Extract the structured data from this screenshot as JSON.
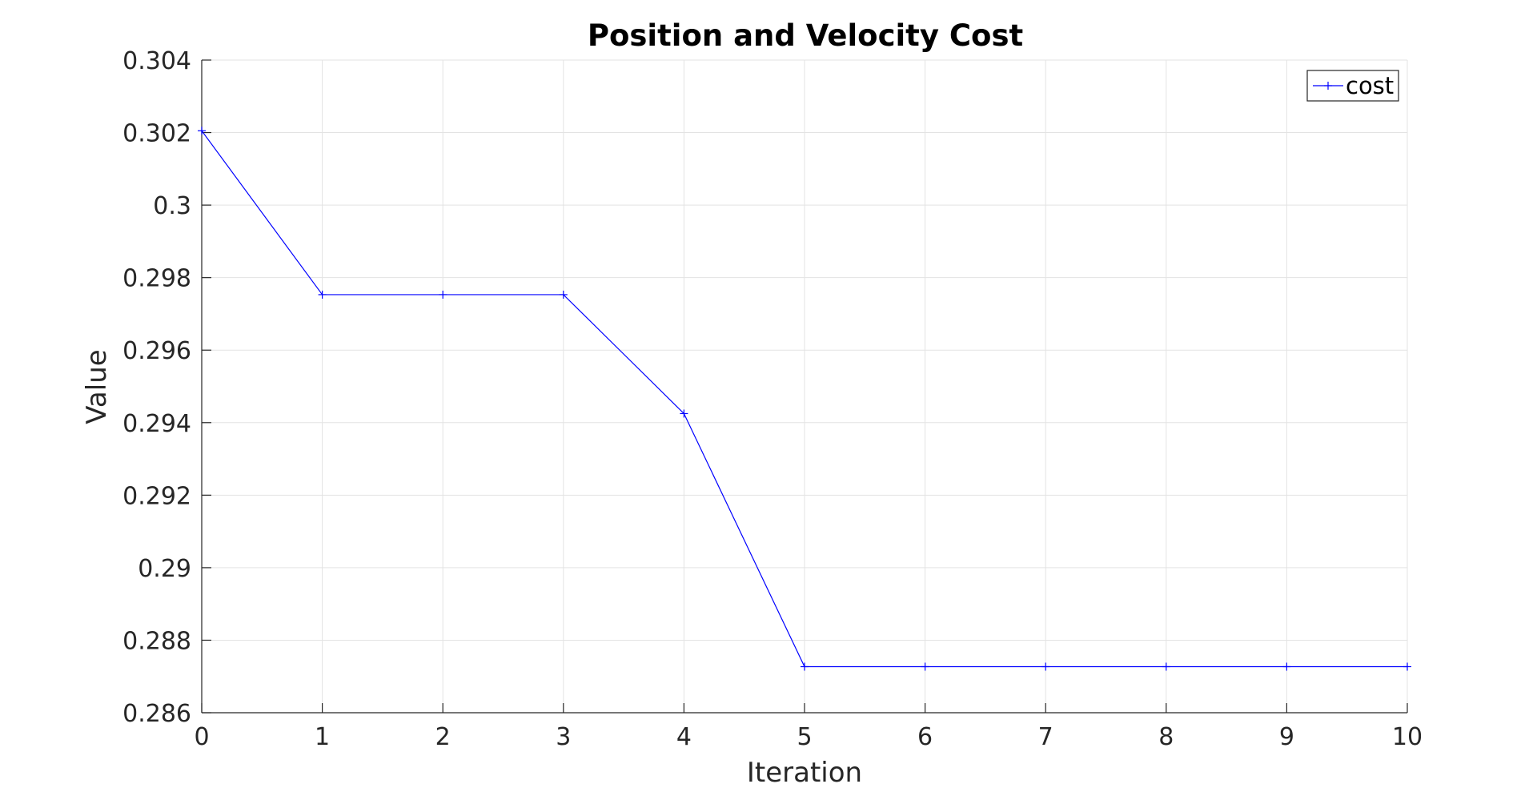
{
  "chart_data": {
    "type": "line",
    "title": "Position and Velocity Cost",
    "xlabel": "Iteration",
    "ylabel": "Value",
    "xlim": [
      0,
      10
    ],
    "ylim": [
      0.286,
      0.304
    ],
    "xticks": [
      0,
      1,
      2,
      3,
      4,
      5,
      6,
      7,
      8,
      9,
      10
    ],
    "xtick_labels": [
      "0",
      "1",
      "2",
      "3",
      "4",
      "5",
      "6",
      "7",
      "8",
      "9",
      "10"
    ],
    "yticks": [
      0.286,
      0.288,
      0.29,
      0.292,
      0.294,
      0.296,
      0.298,
      0.3,
      0.302,
      0.304
    ],
    "ytick_labels": [
      "0.286",
      "0.288",
      "0.29",
      "0.292",
      "0.294",
      "0.296",
      "0.298",
      "0.3",
      "0.302",
      "0.304"
    ],
    "grid": true,
    "legend_position": "top-right",
    "series": [
      {
        "name": "cost",
        "color": "#0000ff",
        "marker": "plus",
        "x": [
          0,
          1,
          2,
          3,
          4,
          5,
          6,
          7,
          8,
          9,
          10
        ],
        "y": [
          0.30205,
          0.29753,
          0.29753,
          0.29753,
          0.29425,
          0.28727,
          0.28727,
          0.28727,
          0.28727,
          0.28727,
          0.28727
        ]
      }
    ]
  }
}
